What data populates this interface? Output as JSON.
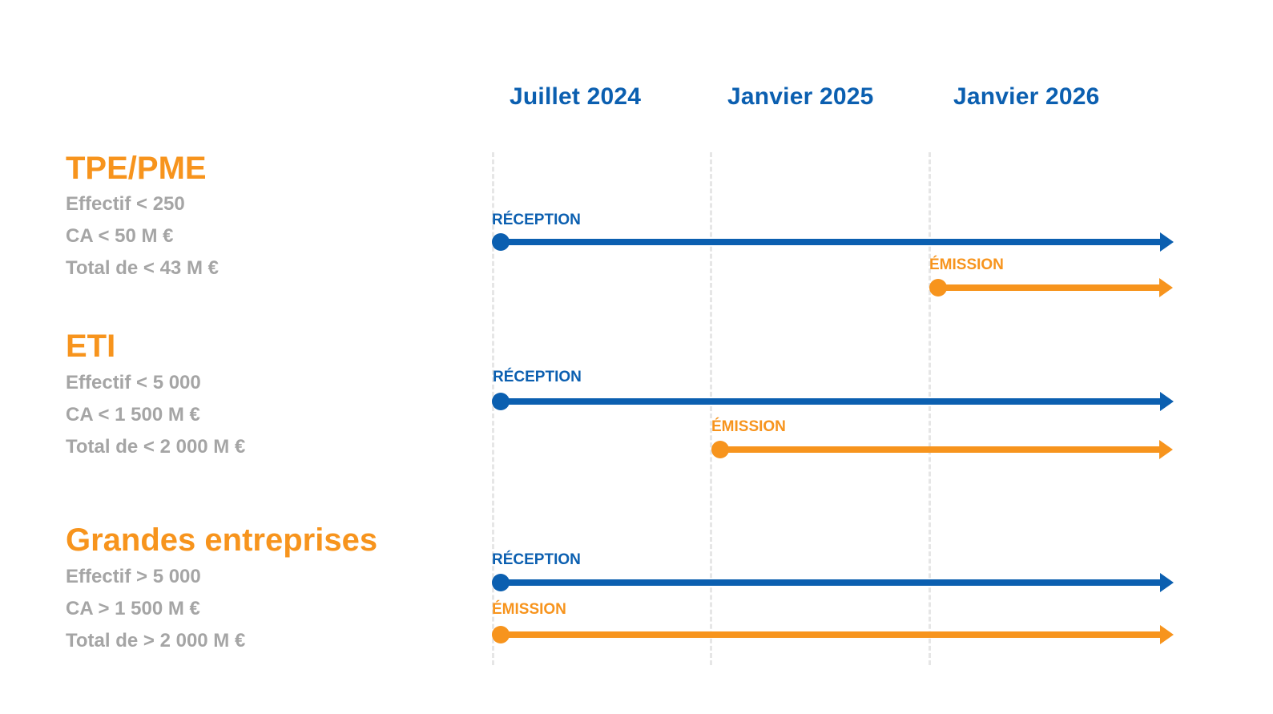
{
  "dates": [
    "Juillet 2024",
    "Janvier 2025",
    "Janvier 2026"
  ],
  "segments": [
    {
      "title": "TPE/PME",
      "criteria": [
        "Effectif < 250",
        "CA < 50 M €",
        "Total de < 43 M €"
      ],
      "tracks": [
        {
          "type": "reception",
          "label": "RÉCEPTION",
          "start": "Juillet 2024"
        },
        {
          "type": "emission",
          "label": "ÉMISSION",
          "start": "Janvier 2026"
        }
      ]
    },
    {
      "title": "ETI",
      "criteria": [
        "Effectif < 5 000",
        "CA < 1 500 M €",
        "Total de < 2 000 M €"
      ],
      "tracks": [
        {
          "type": "reception",
          "label": "RÉCEPTION",
          "start": "Juillet 2024"
        },
        {
          "type": "emission",
          "label": "ÉMISSION",
          "start": "Janvier 2025"
        }
      ]
    },
    {
      "title": "Grandes entreprises",
      "criteria": [
        "Effectif > 5 000",
        "CA > 1 500 M €",
        "Total de > 2 000 M €"
      ],
      "tracks": [
        {
          "type": "reception",
          "label": "RÉCEPTION",
          "start": "Juillet 2024"
        },
        {
          "type": "emission",
          "label": "ÉMISSION",
          "start": "Juillet 2024"
        }
      ]
    }
  ],
  "colors": {
    "reception": "#0b5fb0",
    "emission": "#f7941d",
    "criteria": "#a5a5a5",
    "guide": "#e6e6e6"
  }
}
